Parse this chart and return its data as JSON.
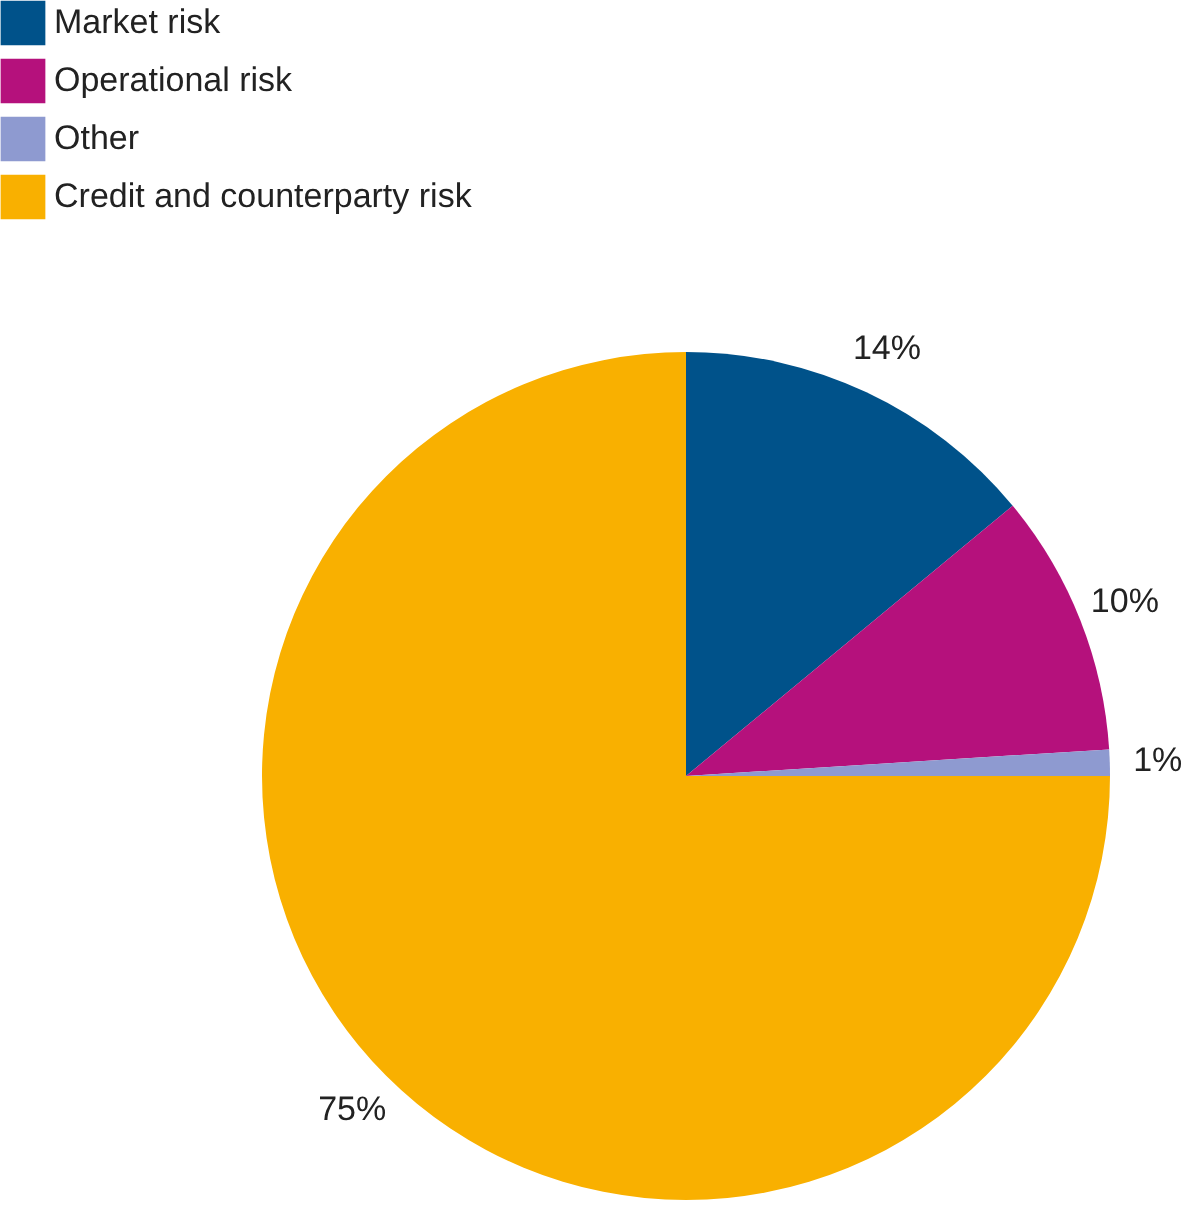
{
  "chart_data": {
    "type": "pie",
    "categories": [
      "Market risk",
      "Operational risk",
      "Other",
      "Credit and counterparty risk"
    ],
    "values": [
      14,
      10,
      1,
      75
    ],
    "colors": [
      "#00528a",
      "#b5117c",
      "#8e9ad0",
      "#f9b000"
    ],
    "value_labels": [
      "14%",
      "10%",
      "1%",
      "75%"
    ],
    "legend": "top left"
  }
}
